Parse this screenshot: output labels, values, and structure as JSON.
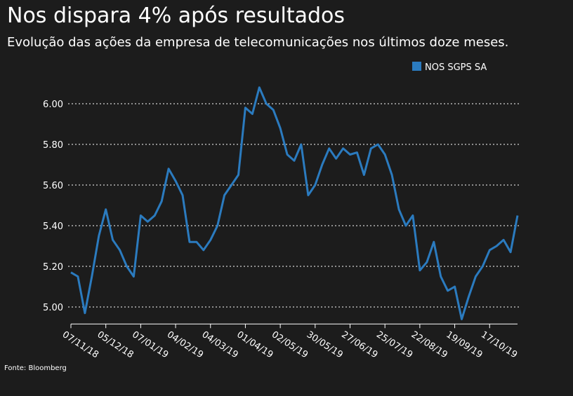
{
  "chart_data": {
    "type": "line",
    "title": "Nos dispara 4% após resultados",
    "subtitle": "Evolução das ações da empresa de telecomunicações nos últimos doze meses.",
    "source": "Fonte: Bloomberg",
    "categories": [
      "07/11/18",
      null,
      null,
      null,
      null,
      "05/12/18",
      null,
      null,
      null,
      null,
      "07/01/19",
      null,
      null,
      null,
      null,
      "04/02/19",
      null,
      null,
      null,
      null,
      "04/03/19",
      null,
      null,
      null,
      null,
      "01/04/19",
      null,
      null,
      null,
      null,
      "02/05/19",
      null,
      null,
      null,
      null,
      "30/05/19",
      null,
      null,
      null,
      null,
      "27/06/19",
      null,
      null,
      null,
      null,
      "25/07/19",
      null,
      null,
      null,
      null,
      "22/08/19",
      null,
      null,
      null,
      null,
      "19/09/19",
      null,
      null,
      null,
      null,
      "17/10/19",
      null,
      null,
      null,
      null
    ],
    "series": [
      {
        "name": "NOS SGPS SA",
        "color": "#2b7bbf",
        "values": [
          5.17,
          5.15,
          4.97,
          5.15,
          5.35,
          5.48,
          5.33,
          5.28,
          5.2,
          5.15,
          5.45,
          5.42,
          5.45,
          5.52,
          5.68,
          5.62,
          5.55,
          5.32,
          5.32,
          5.28,
          5.33,
          5.4,
          5.55,
          5.6,
          5.65,
          5.98,
          5.95,
          6.08,
          6.0,
          5.97,
          5.88,
          5.75,
          5.72,
          5.8,
          5.55,
          5.6,
          5.7,
          5.78,
          5.73,
          5.78,
          5.75,
          5.76,
          5.65,
          5.78,
          5.8,
          5.75,
          5.65,
          5.48,
          5.4,
          5.45,
          5.18,
          5.22,
          5.32,
          5.15,
          5.08,
          5.1,
          4.94,
          5.05,
          5.15,
          5.2,
          5.28,
          5.3,
          5.33,
          5.27,
          5.45
        ]
      }
    ],
    "ylim": [
      4.92,
      6.12
    ],
    "yticks": [
      {
        "value": 5,
        "label": "5.00"
      },
      {
        "value": 5.2,
        "label": "5.20"
      },
      {
        "value": 5.4,
        "label": "5.40"
      },
      {
        "value": 5.6,
        "label": "5.60"
      },
      {
        "value": 5.8,
        "label": "5.80"
      },
      {
        "value": 6,
        "label": "6.00"
      }
    ],
    "grid": true
  }
}
